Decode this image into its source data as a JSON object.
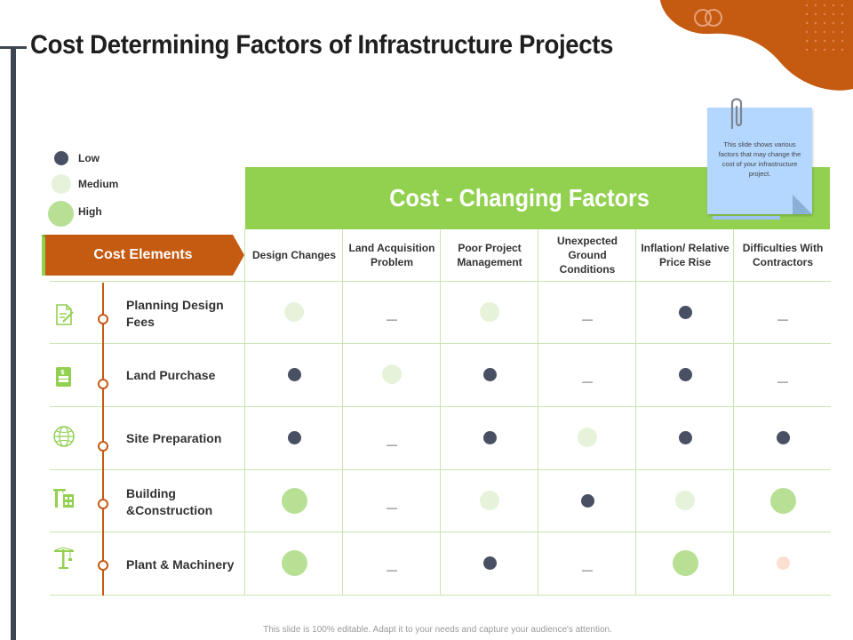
{
  "title": "Cost Determining Factors of Infrastructure Projects",
  "legend": [
    {
      "label": "Low",
      "level": "low"
    },
    {
      "label": "Medium",
      "level": "medium"
    },
    {
      "label": "High",
      "level": "high"
    }
  ],
  "header": "Cost - Changing Factors",
  "note": "This slide shows various factors that may change the cost of your infrastructure project.",
  "cost_elements_label": "Cost Elements",
  "columns": [
    "Design Changes",
    "Land Acquisition Problem",
    "Poor Project Management",
    "Unexpected Ground Conditions",
    "Inflation/ Relative Price Rise",
    "Difficulties With Contractors"
  ],
  "rows": [
    {
      "label": "Planning Design Fees",
      "icon": "document-edit-icon",
      "cells": [
        "medium",
        "none",
        "medium",
        "none",
        "low",
        "none"
      ]
    },
    {
      "label": "Land Purchase",
      "icon": "money-card-icon",
      "cells": [
        "low",
        "medium",
        "low",
        "none",
        "low",
        "none"
      ]
    },
    {
      "label": "Site Preparation",
      "icon": "globe-icon",
      "cells": [
        "low",
        "none",
        "low",
        "medium",
        "low",
        "low"
      ]
    },
    {
      "label": "Building &Construction",
      "icon": "building-crane-icon",
      "cells": [
        "high",
        "none",
        "medium",
        "low",
        "medium",
        "high"
      ]
    },
    {
      "label": "Plant & Machinery",
      "icon": "tower-crane-icon",
      "cells": [
        "high",
        "none",
        "low",
        "none",
        "high",
        "peach"
      ]
    }
  ],
  "dash": "—",
  "footer": "This slide is 100% editable. Adapt it to your needs and capture your audience's attention.",
  "colors": {
    "low": "#4a5063",
    "medium": "#e6f3da",
    "high": "#b8e094",
    "peach": "#fbe0d2",
    "accent_orange": "#c55a11",
    "accent_green": "#92d050",
    "note_blue": "#b3d7ff",
    "timeline": "#3e4553"
  }
}
